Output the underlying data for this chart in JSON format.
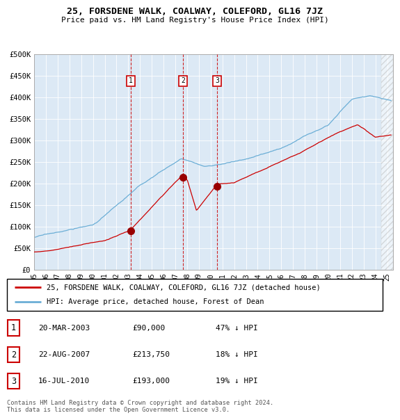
{
  "title": "25, FORSDENE WALK, COALWAY, COLEFORD, GL16 7JZ",
  "subtitle": "Price paid vs. HM Land Registry's House Price Index (HPI)",
  "plot_bg_color": "#dce9f5",
  "ylabel_ticks": [
    "£0",
    "£50K",
    "£100K",
    "£150K",
    "£200K",
    "£250K",
    "£300K",
    "£350K",
    "£400K",
    "£450K",
    "£500K"
  ],
  "ytick_values": [
    0,
    50000,
    100000,
    150000,
    200000,
    250000,
    300000,
    350000,
    400000,
    450000,
    500000
  ],
  "xmin": 1995.0,
  "xmax": 2025.5,
  "ymin": 0,
  "ymax": 500000,
  "hpi_color": "#6baed6",
  "price_color": "#cc0000",
  "sale_dates": [
    2003.22,
    2007.64,
    2010.54
  ],
  "sale_labels": [
    "1",
    "2",
    "3"
  ],
  "sale_prices": [
    90000,
    213750,
    193000
  ],
  "legend_line1": "25, FORSDENE WALK, COALWAY, COLEFORD, GL16 7JZ (detached house)",
  "legend_line2": "HPI: Average price, detached house, Forest of Dean",
  "table_entries": [
    {
      "num": "1",
      "date": "20-MAR-2003",
      "price": "£90,000",
      "hpi": "47% ↓ HPI"
    },
    {
      "num": "2",
      "date": "22-AUG-2007",
      "price": "£213,750",
      "hpi": "18% ↓ HPI"
    },
    {
      "num": "3",
      "date": "16-JUL-2010",
      "price": "£193,000",
      "hpi": "19% ↓ HPI"
    }
  ],
  "footer": "Contains HM Land Registry data © Crown copyright and database right 2024.\nThis data is licensed under the Open Government Licence v3.0."
}
